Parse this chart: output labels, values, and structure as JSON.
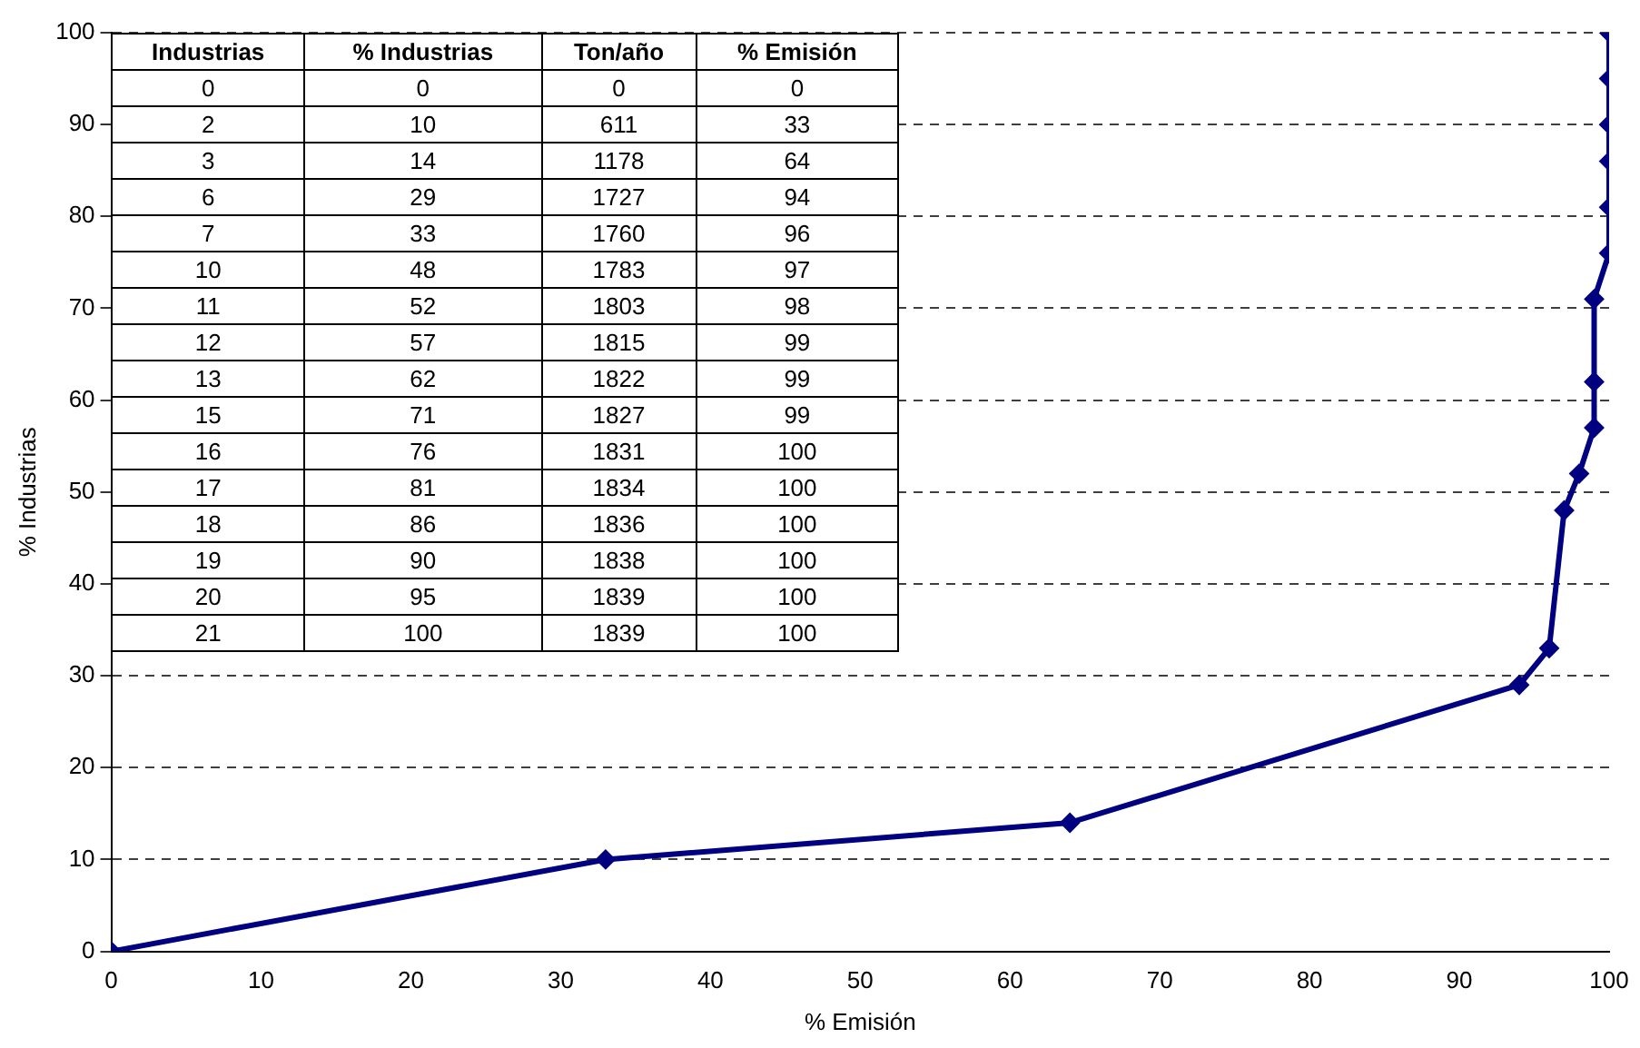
{
  "chart_data": [
    {
      "type": "line",
      "xlabel": "% Emisión",
      "ylabel": "% Industrias",
      "x": [
        0,
        33,
        64,
        94,
        96,
        97,
        98,
        99,
        99,
        99,
        100,
        100,
        100,
        100,
        100,
        100
      ],
      "series": [
        {
          "color": "#000080",
          "values": [
            0,
            10,
            14,
            29,
            33,
            48,
            52,
            57,
            62,
            71,
            76,
            81,
            86,
            90,
            95,
            100
          ]
        }
      ],
      "xlim": [
        0,
        100
      ],
      "xticks": [
        0,
        10,
        20,
        30,
        40,
        50,
        60,
        70,
        80,
        90,
        100
      ],
      "ylim": [
        0,
        100
      ],
      "yticks": [
        0,
        10,
        20,
        30,
        40,
        50,
        60,
        70,
        80,
        90,
        100
      ],
      "grid": "y",
      "legend": false,
      "marker": "diamond",
      "line_style": "solid"
    },
    {
      "type": "other",
      "categories": [
        "Industrias",
        "% Industrias",
        "Ton/año",
        "% Emisión"
      ],
      "annotations": [
        "0",
        "0",
        "0",
        "0",
        "2",
        "10",
        "611",
        "33",
        "3",
        "14",
        "1178",
        "64",
        "6",
        "29",
        "1727",
        "94",
        "7",
        "33",
        "1760",
        "96",
        "10",
        "48",
        "1783",
        "97",
        "11",
        "52",
        "1803",
        "98",
        "12",
        "57",
        "1815",
        "99",
        "13",
        "62",
        "1822",
        "99",
        "15",
        "71",
        "1827",
        "99",
        "16",
        "76",
        "1831",
        "100",
        "17",
        "81",
        "1834",
        "100",
        "18",
        "86",
        "1836",
        "100",
        "19",
        "90",
        "1838",
        "100",
        "20",
        "95",
        "1839",
        "100",
        "21",
        "100",
        "1839",
        "100"
      ]
    }
  ]
}
